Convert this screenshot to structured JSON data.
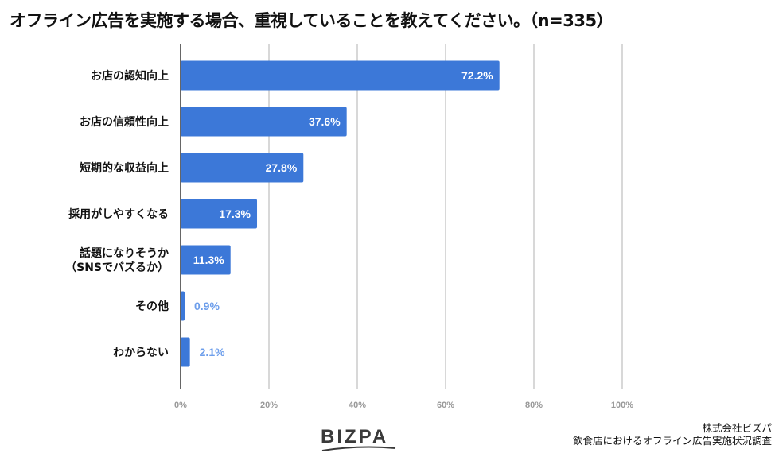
{
  "chart_data": {
    "type": "bar",
    "orientation": "horizontal",
    "title": "オフライン広告を実施する場合、重視していることを教えてください。（n=335）",
    "categories": [
      [
        "お店の認知向上"
      ],
      [
        "お店の信頼性向上"
      ],
      [
        "短期的な収益向上"
      ],
      [
        "採用がしやすくなる"
      ],
      [
        "話題になりそうか",
        "（SNSでバズるか）"
      ],
      [
        "その他"
      ],
      [
        "わからない"
      ]
    ],
    "values": [
      72.2,
      37.6,
      27.8,
      17.3,
      11.3,
      0.9,
      2.1
    ],
    "value_labels": [
      "72.2%",
      "37.6%",
      "27.8%",
      "17.3%",
      "11.3%",
      "0.9%",
      "2.1%"
    ],
    "xlim": [
      0,
      100
    ],
    "xticks": [
      0,
      20,
      40,
      60,
      80,
      100
    ],
    "xtick_labels": [
      "0%",
      "20%",
      "40%",
      "60%",
      "80%",
      "100%"
    ],
    "xlabel": "",
    "ylabel": "",
    "grid": true,
    "legend": "none",
    "bar_color": "#3c78d8",
    "outside_label_color": "#6d9eeb",
    "grid_color": "#cccccc",
    "tick_color": "#999999"
  },
  "brand": {
    "logo_text": "BIZPA"
  },
  "credit": {
    "company": "株式会社ビズパ",
    "survey": "飲食店におけるオフライン広告実施状況調査"
  }
}
